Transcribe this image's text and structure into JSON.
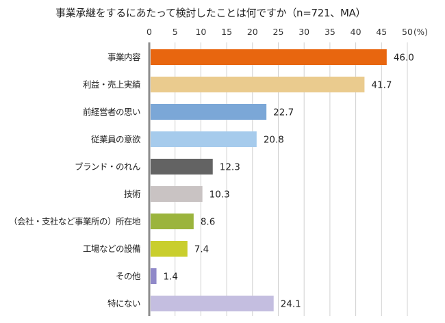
{
  "chart_data": {
    "type": "bar",
    "orientation": "horizontal",
    "title": "事業承継をするにあたって検討したことは何ですか（n=721、MA）",
    "xlabel": "",
    "ylabel": "",
    "unit_label": "(%)",
    "xlim": [
      0,
      50
    ],
    "ticks": [
      0,
      5,
      10,
      15,
      20,
      25,
      30,
      35,
      40,
      45,
      50
    ],
    "tick_position": "top",
    "grid": true,
    "legend": "none",
    "categories": [
      "事業内容",
      "利益・売上実績",
      "前経営者の思い",
      "従業員の意欲",
      "ブランド・のれん",
      "技術",
      "（会社・支社など事業所の）所在地",
      "工場などの設備",
      "その他",
      "特にない"
    ],
    "values": [
      46.0,
      41.7,
      22.7,
      20.8,
      12.3,
      10.3,
      8.6,
      7.4,
      1.4,
      24.1
    ],
    "value_labels": [
      "46.0",
      "41.7",
      "22.7",
      "20.8",
      "12.3",
      "10.3",
      "8.6",
      "7.4",
      "1.4",
      "24.1"
    ],
    "colors": [
      "#E8660F",
      "#EACB8E",
      "#7BA7D7",
      "#A6CBEC",
      "#636363",
      "#C9C3C3",
      "#9BB43D",
      "#C9CE2D",
      "#9089C9",
      "#C4BEE0"
    ]
  },
  "style": {
    "axis_color": "#8C8C8C",
    "grid_color": "#D0D0D0"
  }
}
